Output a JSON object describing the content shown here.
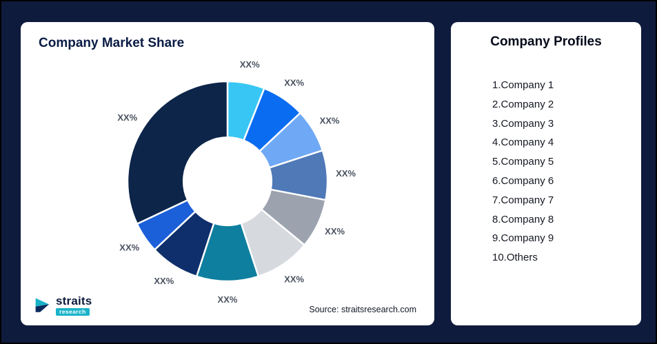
{
  "page": {
    "background": "#0F1B3D",
    "border_color": "#000000"
  },
  "chart_card": {
    "title": "Company Market Share",
    "source": "Source: straitsresearch.com",
    "logo_primary": "straits",
    "logo_secondary": "research",
    "logo_accent_color": "#18B3C9"
  },
  "profiles_card": {
    "title": "Company Profiles",
    "items": [
      "1.Company 1",
      "2.Company 2",
      "3.Company 3",
      "4.Company 4",
      "5.Company 5",
      "6.Company 6",
      "7.Company 7",
      "8.Company 8",
      "9.Company 9",
      "10.Others"
    ]
  },
  "chart_data": {
    "type": "pie",
    "subtype": "donut",
    "title": "Company Market Share",
    "categories": [
      "Company 1",
      "Company 2",
      "Company 3",
      "Company 4",
      "Company 5",
      "Company 6",
      "Company 7",
      "Company 8",
      "Company 9",
      "Others"
    ],
    "labels": [
      "XX%",
      "XX%",
      "XX%",
      "XX%",
      "XX%",
      "XX%",
      "XX%",
      "XX%",
      "XX%",
      "XX%"
    ],
    "values_estimated_pct": [
      6,
      7,
      7,
      8,
      8,
      9,
      10,
      8,
      5,
      32
    ],
    "colors": [
      "#38C6F4",
      "#0A6CF1",
      "#6FA8F5",
      "#4F79B7",
      "#9CA3AF",
      "#D6D9DE",
      "#0E7F9E",
      "#0E2F6B",
      "#1B5FD9",
      "#0D2549"
    ],
    "start_angle_deg": 0,
    "direction": "clockwise",
    "inner_radius_ratio": 0.44,
    "slice_gap_color": "#FFFFFF",
    "legend": "none"
  }
}
